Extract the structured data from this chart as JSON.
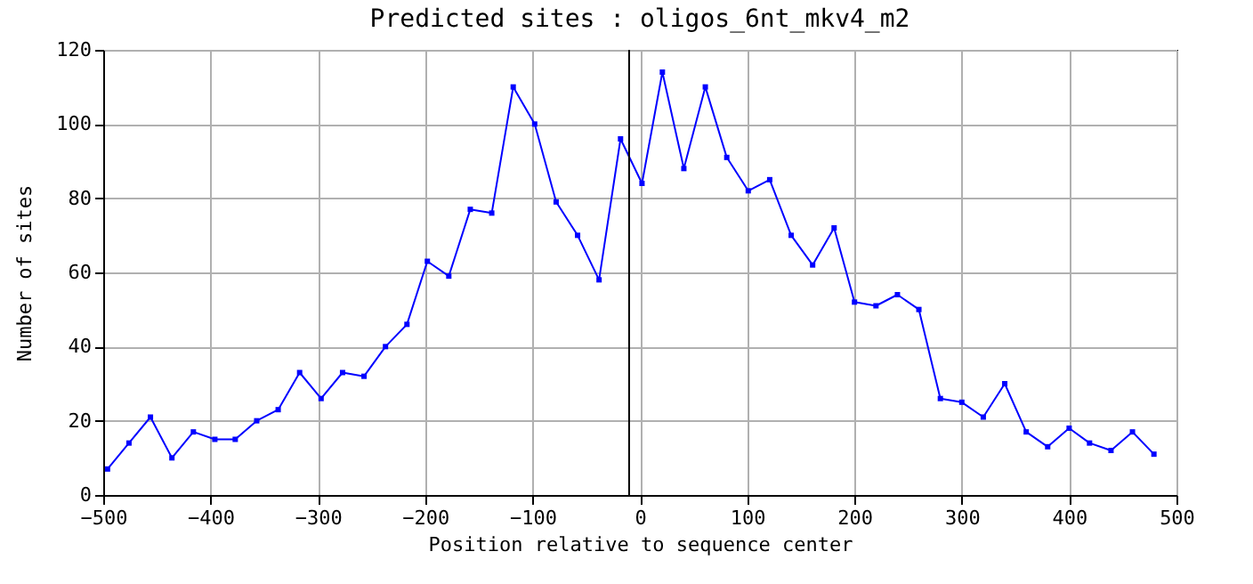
{
  "chart_data": {
    "type": "line",
    "title": "Predicted sites : oligos_6nt_mkv4_m2",
    "xlabel": "Position relative to sequence center",
    "ylabel": "Number of sites",
    "x": [
      -496,
      -476,
      -456,
      -436,
      -416,
      -396,
      -377,
      -357,
      -337,
      -317,
      -297,
      -277,
      -257,
      -237,
      -217,
      -198,
      -178,
      -158,
      -138,
      -118,
      -98,
      -78,
      -58,
      -38,
      -18,
      2,
      21,
      41,
      61,
      81,
      101,
      121,
      141,
      161,
      181,
      200,
      220,
      240,
      260,
      280,
      300,
      320,
      340,
      360,
      380,
      400,
      419,
      439,
      459,
      479
    ],
    "series": [
      {
        "color": "#0000ff",
        "values": [
          7,
          14,
          21,
          10,
          17,
          15,
          15,
          20,
          23,
          33,
          26,
          33,
          32,
          40,
          46,
          63,
          59,
          77,
          76,
          110,
          100,
          79,
          70,
          58,
          96,
          84,
          114,
          88,
          110,
          91,
          82,
          85,
          70,
          62,
          72,
          52,
          51,
          54,
          50,
          26,
          25,
          21,
          30,
          17,
          13,
          18,
          14,
          12,
          17,
          11
        ]
      }
    ],
    "xlim": [
      -500,
      500
    ],
    "xticks": [
      -500,
      -400,
      -300,
      -200,
      -100,
      0,
      100,
      200,
      300,
      400,
      500
    ],
    "ylim": [
      0,
      120
    ],
    "yticks": [
      0,
      20,
      40,
      60,
      80,
      100,
      120
    ],
    "grid": true,
    "marker": "square",
    "line_style": "solid",
    "ref_lines": [
      {
        "axis": "x",
        "value": -10,
        "color": "#000000"
      }
    ]
  }
}
